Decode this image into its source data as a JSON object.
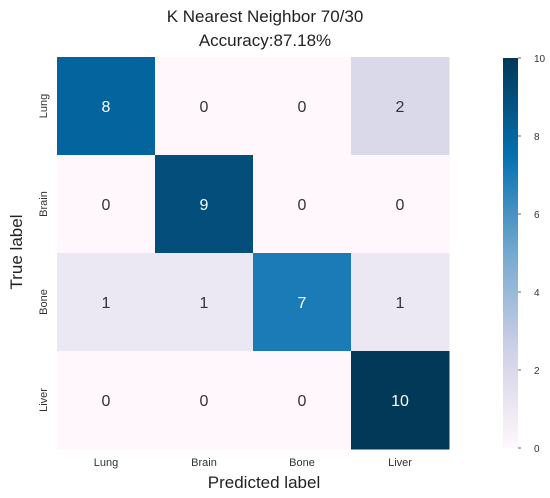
{
  "chart_data": {
    "type": "heatmap",
    "title": "K Nearest Neighbor  70/30",
    "subtitle": "Accuracy:87.18%",
    "xlabel": "Predicted label",
    "ylabel": "True label",
    "x_categories": [
      "Lung",
      "Brain",
      "Bone",
      "Liver"
    ],
    "y_categories": [
      "Lung",
      "Brain",
      "Bone",
      "Liver"
    ],
    "matrix": [
      [
        8,
        0,
        0,
        2
      ],
      [
        0,
        9,
        0,
        0
      ],
      [
        1,
        1,
        7,
        1
      ],
      [
        0,
        0,
        0,
        10
      ]
    ],
    "colorbar": {
      "min": 0,
      "max": 10,
      "ticks": [
        0,
        2,
        4,
        6,
        8,
        10
      ]
    },
    "colormap": [
      "#fff7fb",
      "#d0d1e6",
      "#74a9cf",
      "#0570b0",
      "#023858"
    ]
  }
}
